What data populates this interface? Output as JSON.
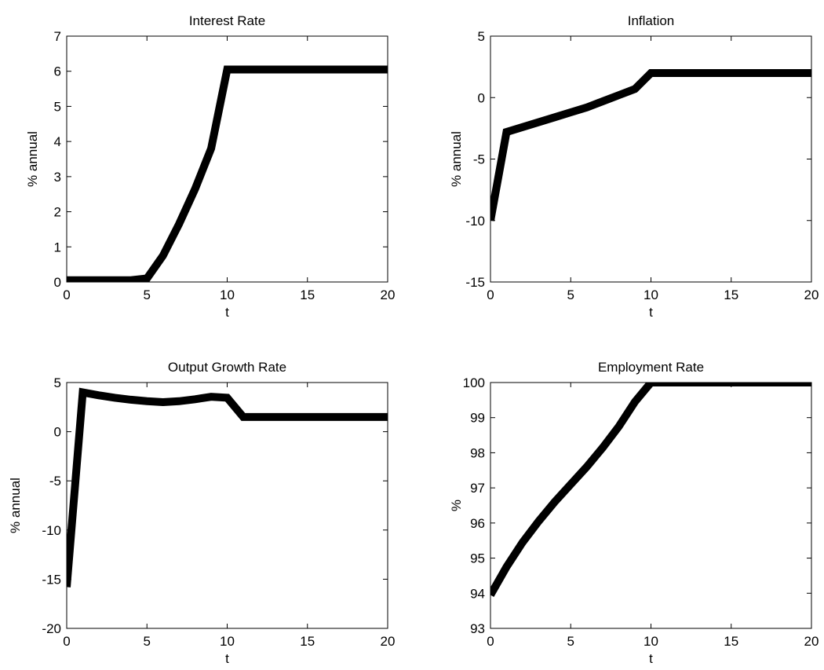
{
  "chart_data": [
    {
      "type": "line",
      "title": "Interest Rate",
      "xlabel": "t",
      "ylabel": "% annual",
      "xlim": [
        0,
        20
      ],
      "ylim": [
        0,
        7
      ],
      "xticks": [
        0,
        5,
        10,
        15,
        20
      ],
      "yticks": [
        0,
        1,
        2,
        3,
        4,
        5,
        6,
        7
      ],
      "grid": false,
      "line_color": "#000000",
      "series": [
        {
          "x": [
            0,
            1,
            2,
            3,
            4,
            5,
            6,
            7,
            8,
            9,
            10,
            11,
            12,
            13,
            14,
            15,
            16,
            17,
            18,
            19,
            20
          ],
          "y": [
            0.05,
            0.05,
            0.05,
            0.05,
            0.05,
            0.1,
            0.75,
            1.65,
            2.65,
            3.8,
            6.05,
            6.05,
            6.05,
            6.05,
            6.05,
            6.05,
            6.05,
            6.05,
            6.05,
            6.05,
            6.05
          ]
        }
      ]
    },
    {
      "type": "line",
      "title": "Inflation",
      "xlabel": "t",
      "ylabel": "% annual",
      "xlim": [
        0,
        20
      ],
      "ylim": [
        -15,
        5
      ],
      "xticks": [
        0,
        5,
        10,
        15,
        20
      ],
      "yticks": [
        -15,
        -10,
        -5,
        0,
        5
      ],
      "grid": false,
      "line_color": "#000000",
      "series": [
        {
          "x": [
            0,
            1,
            2,
            3,
            4,
            5,
            6,
            7,
            8,
            9,
            10,
            11,
            12,
            13,
            14,
            15,
            16,
            17,
            18,
            19,
            20
          ],
          "y": [
            -10,
            -2.8,
            -2.4,
            -2.0,
            -1.6,
            -1.2,
            -0.8,
            -0.3,
            0.2,
            0.7,
            2.0,
            2.0,
            2.0,
            2.0,
            2.0,
            2.0,
            2.0,
            2.0,
            2.0,
            2.0,
            2.0
          ]
        }
      ]
    },
    {
      "type": "line",
      "title": "Output Growth Rate",
      "xlabel": "t",
      "ylabel": "% annual",
      "xlim": [
        0,
        20
      ],
      "ylim": [
        -20,
        5
      ],
      "xticks": [
        0,
        5,
        10,
        15,
        20
      ],
      "yticks": [
        -20,
        -15,
        -10,
        -5,
        0,
        5
      ],
      "grid": false,
      "line_color": "#000000",
      "series": [
        {
          "x": [
            0,
            1,
            2,
            3,
            4,
            5,
            6,
            7,
            8,
            9,
            10,
            11,
            12,
            13,
            14,
            15,
            16,
            17,
            18,
            19,
            20
          ],
          "y": [
            -15.8,
            4.0,
            3.7,
            3.45,
            3.25,
            3.1,
            3.0,
            3.1,
            3.3,
            3.55,
            3.45,
            1.5,
            1.5,
            1.5,
            1.5,
            1.5,
            1.5,
            1.5,
            1.5,
            1.5,
            1.5
          ]
        }
      ]
    },
    {
      "type": "line",
      "title": "Employment Rate",
      "xlabel": "t",
      "ylabel": "%",
      "xlim": [
        0,
        20
      ],
      "ylim": [
        93,
        100
      ],
      "xticks": [
        0,
        5,
        10,
        15,
        20
      ],
      "yticks": [
        93,
        94,
        95,
        96,
        97,
        98,
        99,
        100
      ],
      "grid": false,
      "line_color": "#000000",
      "series": [
        {
          "x": [
            0,
            1,
            2,
            3,
            4,
            5,
            6,
            7,
            8,
            9,
            10,
            11,
            12,
            13,
            14,
            15,
            16,
            17,
            18,
            19,
            20
          ],
          "y": [
            93.95,
            94.75,
            95.45,
            96.05,
            96.6,
            97.1,
            97.6,
            98.15,
            98.75,
            99.45,
            100.0,
            100.0,
            100.0,
            100.0,
            100.0,
            100.0,
            100.0,
            100.0,
            100.0,
            100.0,
            100.0
          ]
        }
      ]
    }
  ]
}
